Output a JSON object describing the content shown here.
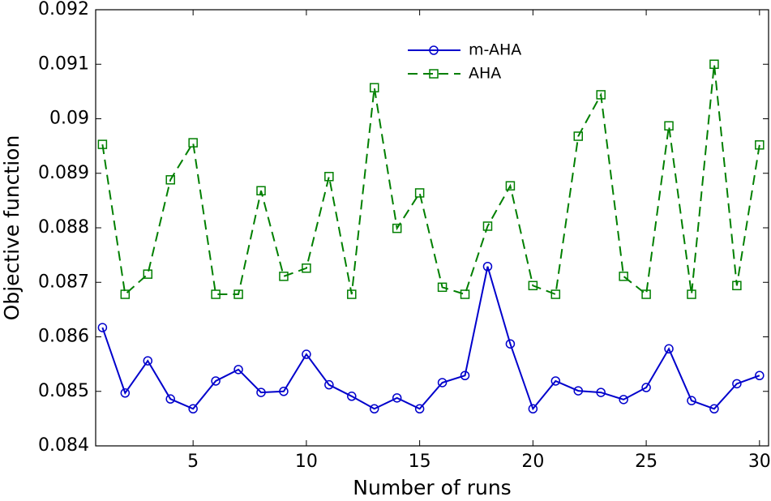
{
  "chart_data": {
    "type": "line",
    "xlabel": "Number of runs",
    "ylabel": "Objective function",
    "x": [
      1,
      2,
      3,
      4,
      5,
      6,
      7,
      8,
      9,
      10,
      11,
      12,
      13,
      14,
      15,
      16,
      17,
      18,
      19,
      20,
      21,
      22,
      23,
      24,
      25,
      26,
      27,
      28,
      29,
      30
    ],
    "series": [
      {
        "name": "m-AHA",
        "color": "#0000cc",
        "dash": false,
        "marker": "circle",
        "values": [
          0.08617,
          0.08497,
          0.08556,
          0.08486,
          0.08468,
          0.08519,
          0.0854,
          0.08498,
          0.085,
          0.08568,
          0.08512,
          0.08491,
          0.08468,
          0.08488,
          0.08468,
          0.08516,
          0.08529,
          0.08729,
          0.08587,
          0.08468,
          0.08519,
          0.08501,
          0.08498,
          0.08485,
          0.08507,
          0.08578,
          0.08483,
          0.08468,
          0.08514,
          0.08529
        ]
      },
      {
        "name": "AHA",
        "color": "#007f00",
        "dash": true,
        "marker": "square",
        "values": [
          0.08953,
          0.08678,
          0.08715,
          0.08888,
          0.08956,
          0.08678,
          0.08678,
          0.08868,
          0.08711,
          0.08726,
          0.08894,
          0.08678,
          0.09057,
          0.08799,
          0.08864,
          0.08691,
          0.08678,
          0.08803,
          0.08877,
          0.08694,
          0.08678,
          0.08968,
          0.09044,
          0.08711,
          0.08678,
          0.08987,
          0.08678,
          0.091,
          0.08694,
          0.08952
        ]
      }
    ],
    "xlim": [
      0.7,
      30.4
    ],
    "ylim": [
      0.084,
      0.092
    ],
    "xticks": [
      5,
      10,
      15,
      20,
      25,
      30
    ],
    "yticks": [
      0.084,
      0.085,
      0.086,
      0.087,
      0.088,
      0.089,
      0.09,
      0.091,
      0.092
    ],
    "legend": "upper center",
    "grid": false
  }
}
